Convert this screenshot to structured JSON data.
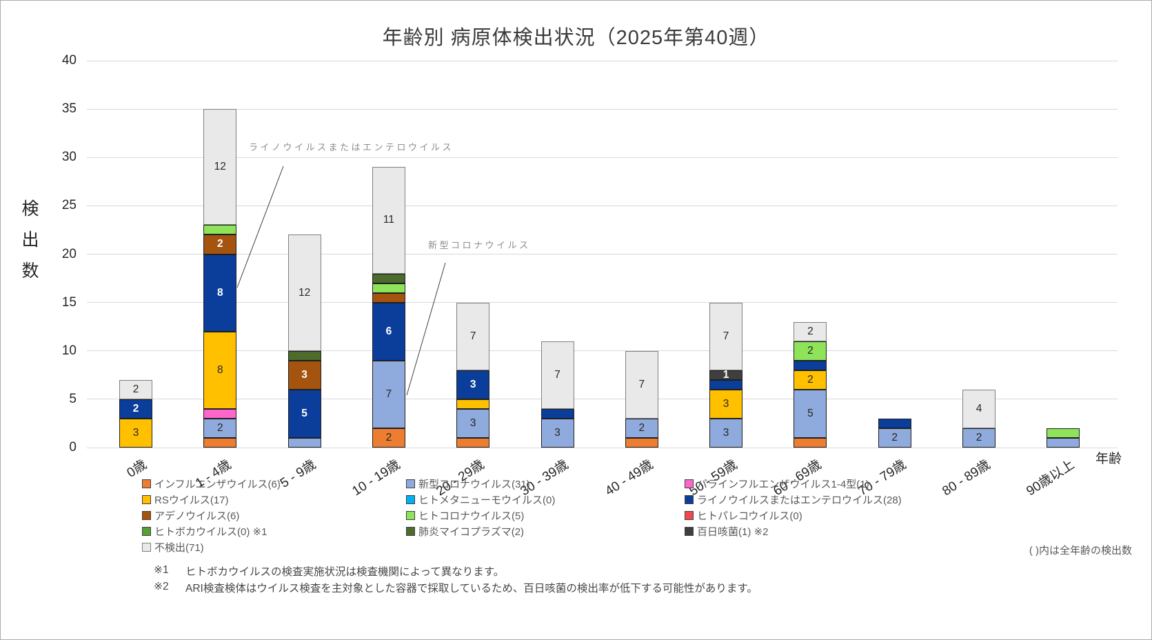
{
  "title": "年齢別 病原体検出状況（2025年第40週）",
  "chart_data": {
    "type": "bar",
    "stacked": true,
    "title": "年齢別 病原体検出状況（2025年第40週）",
    "xlabel": "年齢",
    "ylabel": "検出数",
    "ylim": [
      0,
      40
    ],
    "y_ticks": [
      0,
      5,
      10,
      15,
      20,
      25,
      30,
      35,
      40
    ],
    "grid": true,
    "legend_position": "bottom",
    "categories": [
      "0歳",
      "1 - 4歳",
      "5 - 9歳",
      "10 - 19歳",
      "20 - 29歳",
      "30 - 39歳",
      "40 - 49歳",
      "50 - 59歳",
      "60 - 69歳",
      "70 - 79歳",
      "80 - 89歳",
      "90歳以上"
    ],
    "series": [
      {
        "name": "インフルエンザウイルス",
        "legend_label": "インフルエンザウイルス(6)",
        "total": 6,
        "color": "#ED7D31",
        "label_color": "#262626",
        "values": [
          0,
          1,
          0,
          2,
          1,
          0,
          1,
          0,
          1,
          0,
          0,
          0
        ]
      },
      {
        "name": "新型コロナウイルス",
        "legend_label": "新型コロナウイルス(31)",
        "total": 31,
        "color": "#8FAADC",
        "label_color": "#262626",
        "values": [
          0,
          2,
          1,
          7,
          3,
          3,
          2,
          3,
          5,
          2,
          2,
          1
        ]
      },
      {
        "name": "パラインフルエンザウイルス1-4型",
        "legend_label": "パラインフルエンザウイルス1-4型(1)",
        "total": 1,
        "color": "#FF66CC",
        "label_color": "#262626",
        "values": [
          0,
          1,
          0,
          0,
          0,
          0,
          0,
          0,
          0,
          0,
          0,
          0
        ]
      },
      {
        "name": "RSウイルス",
        "legend_label": "RSウイルス(17)",
        "total": 17,
        "color": "#FFC000",
        "label_color": "#262626",
        "values": [
          3,
          8,
          0,
          0,
          1,
          0,
          0,
          3,
          2,
          0,
          0,
          0
        ]
      },
      {
        "name": "ヒトメタニューモウイルス",
        "legend_label": "ヒトメタニューモウイルス(0)",
        "total": 0,
        "color": "#00B0F0",
        "label_color": "#262626",
        "values": [
          0,
          0,
          0,
          0,
          0,
          0,
          0,
          0,
          0,
          0,
          0,
          0
        ]
      },
      {
        "name": "ライノウイルスまたはエンテロウイルス",
        "legend_label": "ライノウイルスまたはエンテロウイルス(28)",
        "total": 28,
        "color": "#0B3D9B",
        "label_color": "#FFFFFF",
        "values": [
          2,
          8,
          5,
          6,
          3,
          1,
          0,
          1,
          1,
          1,
          0,
          0
        ]
      },
      {
        "name": "アデノウイルス",
        "legend_label": "アデノウイルス(6)",
        "total": 6,
        "color": "#A4540F",
        "label_color": "#FFFFFF",
        "values": [
          0,
          2,
          3,
          1,
          0,
          0,
          0,
          0,
          0,
          0,
          0,
          0
        ]
      },
      {
        "name": "ヒトコロナウイルス",
        "legend_label": "ヒトコロナウイルス(5)",
        "total": 5,
        "color": "#8FE35A",
        "label_color": "#262626",
        "values": [
          0,
          1,
          0,
          1,
          0,
          0,
          0,
          0,
          2,
          0,
          0,
          1
        ]
      },
      {
        "name": "ヒトパレコウイルス",
        "legend_label": "ヒトパレコウイルス(0)",
        "total": 0,
        "color": "#F0484F",
        "label_color": "#FFFFFF",
        "values": [
          0,
          0,
          0,
          0,
          0,
          0,
          0,
          0,
          0,
          0,
          0,
          0
        ]
      },
      {
        "name": "ヒトボカウイルス",
        "legend_label": "ヒトボカウイルス(0) ※1",
        "total": 0,
        "color": "#53A033",
        "label_color": "#FFFFFF",
        "values": [
          0,
          0,
          0,
          0,
          0,
          0,
          0,
          0,
          0,
          0,
          0,
          0
        ]
      },
      {
        "name": "肺炎マイコプラズマ",
        "legend_label": "肺炎マイコプラズマ(2)",
        "total": 2,
        "color": "#4C6B2C",
        "label_color": "#FFFFFF",
        "values": [
          0,
          0,
          1,
          1,
          0,
          0,
          0,
          0,
          0,
          0,
          0,
          0
        ]
      },
      {
        "name": "百日咳菌",
        "legend_label": "百日咳菌(1) ※2",
        "total": 1,
        "color": "#3F3F3F",
        "label_color": "#FFFFFF",
        "show_label_min": 1,
        "values": [
          0,
          0,
          0,
          0,
          0,
          0,
          0,
          1,
          0,
          0,
          0,
          0
        ]
      },
      {
        "name": "不検出",
        "legend_label": "不検出(71)",
        "total": 71,
        "color": "#E9E9E9",
        "border_color": "#7F7F7F",
        "label_color": "#262626",
        "values": [
          2,
          12,
          12,
          11,
          7,
          7,
          7,
          7,
          2,
          0,
          4,
          0
        ]
      }
    ]
  },
  "annotations": [
    {
      "text": "ライノウイルスまたはエンテロウイルス"
    },
    {
      "text": "新型コロナウイルス"
    }
  ],
  "legend_note": "( )内は全年齢の検出数",
  "footnotes": [
    {
      "marker": "※1",
      "text": "ヒトボカウイルスの検査実施状況は検査機関によって異なります。"
    },
    {
      "marker": "※2",
      "text": "ARI検査検体はウイルス検査を主対象とした容器で採取しているため、百日咳菌の検出率が低下する可能性があります。"
    }
  ]
}
